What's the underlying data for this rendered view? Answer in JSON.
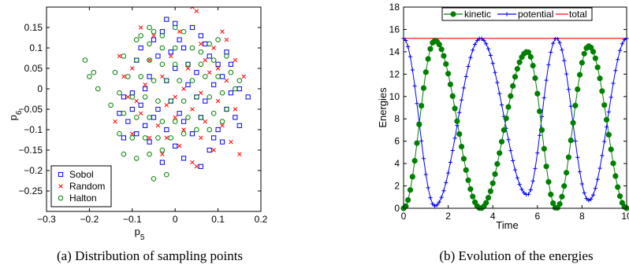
{
  "chart_data": [
    {
      "type": "scatter",
      "xlabel": "p",
      "xlabel_sub": "5",
      "ylabel": "p",
      "ylabel_sub": "6",
      "xlim": [
        -0.3,
        0.2
      ],
      "ylim": [
        -0.3,
        0.2
      ],
      "xticks": [
        -0.3,
        -0.2,
        -0.1,
        0,
        0.1,
        0.2
      ],
      "xtick_labels": [
        "−0.3",
        "−0.2",
        "−0.1",
        "0",
        "0.1",
        "0.2"
      ],
      "yticks": [
        -0.25,
        -0.2,
        -0.15,
        -0.1,
        -0.05,
        0,
        0.05,
        0.1,
        0.15
      ],
      "ytick_labels": [
        "−0.25",
        "−0.2",
        "−0.15",
        "−0.1",
        "−0.05",
        "0",
        "0.05",
        "0.1",
        "0.15"
      ],
      "grid": false,
      "legend_position": "bottom-left",
      "caption": "(a) Distribution of sampling points",
      "series": [
        {
          "name": "Sobol",
          "marker": "square",
          "color": "#0000ff",
          "points": [
            [
              -0.02,
              0.17
            ],
            [
              0.0,
              0.16
            ],
            [
              -0.03,
              0.14
            ],
            [
              0.04,
              0.15
            ],
            [
              0.06,
              0.13
            ],
            [
              -0.05,
              0.12
            ],
            [
              0.02,
              0.1
            ],
            [
              -0.01,
              0.09
            ],
            [
              0.08,
              0.08
            ],
            [
              0.1,
              0.06
            ],
            [
              -0.09,
              0.07
            ],
            [
              0.0,
              0.05
            ],
            [
              0.05,
              0.04
            ],
            [
              -0.06,
              0.03
            ],
            [
              0.11,
              0.03
            ],
            [
              0.03,
              0.01
            ],
            [
              -0.02,
              0.02
            ],
            [
              0.15,
              0.0
            ],
            [
              0.17,
              -0.02
            ],
            [
              0.13,
              -0.01
            ],
            [
              0.07,
              -0.03
            ],
            [
              -0.1,
              -0.01
            ],
            [
              -0.12,
              -0.02
            ],
            [
              -0.08,
              -0.04
            ],
            [
              -0.04,
              -0.05
            ],
            [
              0.01,
              -0.06
            ],
            [
              0.06,
              -0.07
            ],
            [
              0.12,
              -0.05
            ],
            [
              0.14,
              -0.07
            ],
            [
              -0.13,
              -0.06
            ],
            [
              -0.11,
              -0.08
            ],
            [
              -0.07,
              -0.09
            ],
            [
              -0.02,
              -0.1
            ],
            [
              0.04,
              -0.11
            ],
            [
              0.1,
              -0.1
            ],
            [
              0.15,
              -0.09
            ],
            [
              -0.12,
              -0.12
            ],
            [
              -0.06,
              -0.13
            ],
            [
              0.0,
              -0.14
            ],
            [
              0.08,
              -0.15
            ],
            [
              0.02,
              -0.17
            ],
            [
              0.06,
              -0.19
            ],
            [
              -0.03,
              -0.18
            ],
            [
              0.09,
              -0.12
            ],
            [
              -0.09,
              -0.11
            ],
            [
              0.03,
              0.06
            ],
            [
              -0.04,
              0.08
            ],
            [
              0.07,
              0.11
            ],
            [
              0.12,
              0.09
            ],
            [
              -0.07,
              0.0
            ],
            [
              0.05,
              -0.02
            ],
            [
              -0.01,
              -0.03
            ],
            [
              0.09,
              0.01
            ],
            [
              -0.05,
              -0.07
            ],
            [
              0.11,
              -0.13
            ],
            [
              0.01,
              0.12
            ],
            [
              -0.08,
              0.1
            ],
            [
              0.13,
              0.06
            ],
            [
              0.02,
              -0.08
            ],
            [
              -0.1,
              -0.05
            ]
          ]
        },
        {
          "name": "Random",
          "marker": "x",
          "color": "#ff0000",
          "points": [
            [
              0.04,
              0.2
            ],
            [
              0.05,
              0.19
            ],
            [
              -0.08,
              0.15
            ],
            [
              0.01,
              0.14
            ],
            [
              0.11,
              0.14
            ],
            [
              -0.05,
              0.13
            ],
            [
              0.06,
              0.11
            ],
            [
              -0.13,
              0.08
            ],
            [
              0.09,
              0.1
            ],
            [
              -0.01,
              0.08
            ],
            [
              0.14,
              0.07
            ],
            [
              -0.1,
              0.05
            ],
            [
              0.03,
              0.05
            ],
            [
              0.08,
              0.04
            ],
            [
              -0.03,
              0.03
            ],
            [
              0.12,
              0.02
            ],
            [
              0.16,
              0.03
            ],
            [
              -0.07,
              0.01
            ],
            [
              0.02,
              0.0
            ],
            [
              0.06,
              -0.01
            ],
            [
              -0.11,
              -0.02
            ],
            [
              0.1,
              -0.03
            ],
            [
              -0.02,
              -0.04
            ],
            [
              0.04,
              -0.05
            ],
            [
              0.14,
              -0.05
            ],
            [
              -0.08,
              -0.06
            ],
            [
              0.0,
              -0.07
            ],
            [
              0.07,
              -0.08
            ],
            [
              -0.14,
              -0.08
            ],
            [
              -0.04,
              -0.09
            ],
            [
              0.11,
              -0.09
            ],
            [
              0.02,
              -0.1
            ],
            [
              -0.1,
              -0.11
            ],
            [
              0.06,
              -0.12
            ],
            [
              -0.06,
              -0.12
            ],
            [
              0.13,
              -0.13
            ],
            [
              0.01,
              -0.14
            ],
            [
              -0.03,
              -0.16
            ],
            [
              0.09,
              -0.15
            ],
            [
              0.15,
              -0.16
            ],
            [
              0.04,
              -0.18
            ],
            [
              0.05,
              -0.19
            ],
            [
              -0.09,
              -0.03
            ],
            [
              0.12,
              0.12
            ],
            [
              -0.06,
              0.07
            ],
            [
              0.07,
              0.07
            ],
            [
              -0.12,
              0.03
            ],
            [
              0.0,
              -0.02
            ],
            [
              0.1,
              0.05
            ],
            [
              -0.02,
              -0.12
            ]
          ]
        },
        {
          "name": "Halton",
          "marker": "circle",
          "color": "#008000",
          "points": [
            [
              -0.21,
              0.07
            ],
            [
              -0.19,
              0.04
            ],
            [
              -0.2,
              0.03
            ],
            [
              -0.18,
              0.0
            ],
            [
              -0.05,
              0.14
            ],
            [
              -0.03,
              0.13
            ],
            [
              -0.06,
              0.15
            ],
            [
              0.0,
              0.15
            ],
            [
              0.02,
              0.14
            ],
            [
              -0.09,
              0.12
            ],
            [
              -0.06,
              0.11
            ],
            [
              -0.03,
              0.1
            ],
            [
              0.0,
              0.1
            ],
            [
              0.04,
              0.1
            ],
            [
              0.08,
              0.11
            ],
            [
              -0.12,
              0.08
            ],
            [
              -0.09,
              0.07
            ],
            [
              -0.06,
              0.07
            ],
            [
              -0.03,
              0.06
            ],
            [
              0.0,
              0.06
            ],
            [
              0.03,
              0.06
            ],
            [
              0.06,
              0.06
            ],
            [
              0.09,
              0.07
            ],
            [
              0.12,
              0.08
            ],
            [
              -0.14,
              0.04
            ],
            [
              -0.11,
              0.03
            ],
            [
              -0.08,
              0.03
            ],
            [
              -0.05,
              0.02
            ],
            [
              -0.02,
              0.02
            ],
            [
              0.01,
              0.02
            ],
            [
              0.04,
              0.02
            ],
            [
              0.07,
              0.03
            ],
            [
              0.1,
              0.03
            ],
            [
              0.13,
              0.04
            ],
            [
              -0.13,
              -0.01
            ],
            [
              -0.1,
              -0.02
            ],
            [
              -0.07,
              -0.02
            ],
            [
              -0.04,
              -0.03
            ],
            [
              -0.01,
              -0.03
            ],
            [
              0.02,
              -0.03
            ],
            [
              0.05,
              -0.02
            ],
            [
              0.08,
              -0.02
            ],
            [
              0.11,
              -0.01
            ],
            [
              0.14,
              0.0
            ],
            [
              -0.12,
              -0.06
            ],
            [
              -0.09,
              -0.07
            ],
            [
              -0.06,
              -0.07
            ],
            [
              -0.03,
              -0.08
            ],
            [
              0.0,
              -0.08
            ],
            [
              0.03,
              -0.07
            ],
            [
              0.06,
              -0.07
            ],
            [
              0.09,
              -0.06
            ],
            [
              0.12,
              -0.05
            ],
            [
              -0.13,
              -0.11
            ],
            [
              -0.1,
              -0.12
            ],
            [
              -0.07,
              -0.12
            ],
            [
              -0.04,
              -0.12
            ],
            [
              -0.01,
              -0.12
            ],
            [
              0.02,
              -0.11
            ],
            [
              0.05,
              -0.1
            ],
            [
              0.08,
              -0.1
            ],
            [
              -0.12,
              -0.16
            ],
            [
              -0.09,
              -0.17
            ],
            [
              -0.06,
              -0.16
            ],
            [
              -0.03,
              -0.15
            ],
            [
              -0.02,
              -0.21
            ],
            [
              -0.05,
              -0.22
            ],
            [
              0.1,
              0.12
            ],
            [
              0.06,
              0.09
            ],
            [
              -0.15,
              -0.04
            ],
            [
              0.11,
              -0.08
            ],
            [
              -0.08,
              0.13
            ],
            [
              0.15,
              0.02
            ]
          ]
        }
      ]
    },
    {
      "type": "line",
      "xlabel": "Time",
      "ylabel": "Energies",
      "xlim": [
        0,
        10
      ],
      "ylim": [
        0,
        18
      ],
      "xticks": [
        0,
        2,
        4,
        6,
        8,
        10
      ],
      "xtick_labels": [
        "0",
        "2",
        "4",
        "6",
        "8",
        "10"
      ],
      "yticks": [
        0,
        2,
        4,
        6,
        8,
        10,
        12,
        14,
        16,
        18
      ],
      "ytick_labels": [
        "0",
        "2",
        "4",
        "6",
        "8",
        "10",
        "12",
        "14",
        "16",
        "18"
      ],
      "grid": false,
      "legend_position": "top",
      "caption": "(b) Evolution of the energies",
      "total_energy": 15.2,
      "kinetic_min_times": [
        0.0,
        3.45,
        6.85,
        10.0
      ],
      "kinetic_max_times": [
        1.4,
        5.55,
        8.3
      ],
      "kinetic_max_values": [
        15.0,
        14.0,
        14.5
      ],
      "series": [
        {
          "name": "kinetic",
          "marker": "dot",
          "color": "#008000"
        },
        {
          "name": "potential",
          "marker": "plus",
          "color": "#0000ff"
        },
        {
          "name": "total",
          "marker": "none",
          "color": "#ff0000"
        }
      ]
    }
  ]
}
